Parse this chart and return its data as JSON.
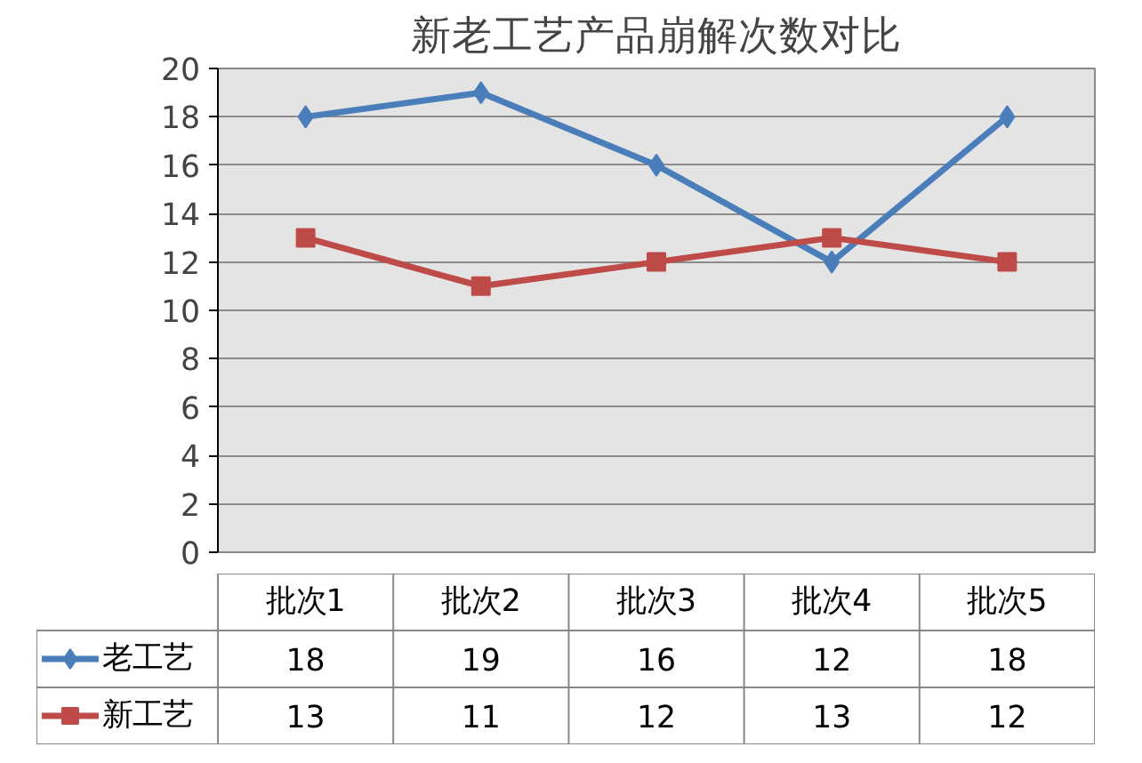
{
  "chart_data": {
    "type": "line",
    "title": "新老工艺产品崩解次数对比",
    "categories": [
      "批次1",
      "批次2",
      "批次3",
      "批次4",
      "批次5"
    ],
    "series": [
      {
        "name": "老工艺",
        "color": "#4a7ebb",
        "values": [
          18,
          19,
          16,
          12,
          18
        ],
        "marker": "diamond"
      },
      {
        "name": "新工艺",
        "color": "#be4b48",
        "values": [
          13,
          11,
          12,
          13,
          12
        ],
        "marker": "square"
      }
    ],
    "ylim": [
      0,
      20
    ],
    "yticks": [
      0,
      2,
      4,
      6,
      8,
      10,
      12,
      14,
      16,
      18,
      20
    ],
    "grid": "y",
    "legend": "bottom left",
    "data_labels": true
  }
}
